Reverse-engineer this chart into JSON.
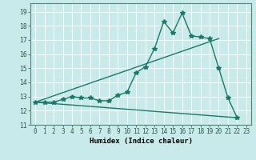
{
  "title": "",
  "xlabel": "Humidex (Indice chaleur)",
  "ylabel": "",
  "background_color": "#c8eaea",
  "grid_color": "#ffffff",
  "line_color": "#1a7a6a",
  "xlim": [
    -0.5,
    23.5
  ],
  "ylim": [
    11,
    19.6
  ],
  "yticks": [
    11,
    12,
    13,
    14,
    15,
    16,
    17,
    18,
    19
  ],
  "xticks": [
    0,
    1,
    2,
    3,
    4,
    5,
    6,
    7,
    8,
    9,
    10,
    11,
    12,
    13,
    14,
    15,
    16,
    17,
    18,
    19,
    20,
    21,
    22,
    23
  ],
  "xtick_labels": [
    "0",
    "1",
    "2",
    "3",
    "4",
    "5",
    "6",
    "7",
    "8",
    "9",
    "10",
    "11",
    "12",
    "13",
    "14",
    "15",
    "16",
    "17",
    "18",
    "19",
    "20",
    "21",
    "22",
    "23"
  ],
  "line1_x": [
    0,
    1,
    2,
    3,
    4,
    5,
    6,
    7,
    8,
    9,
    10,
    11,
    12,
    13,
    14,
    15,
    16,
    17,
    18,
    19,
    20,
    21,
    22
  ],
  "line1_y": [
    12.6,
    12.6,
    12.6,
    12.8,
    13.0,
    12.9,
    12.9,
    12.7,
    12.7,
    13.1,
    13.3,
    14.7,
    15.1,
    16.4,
    18.3,
    17.5,
    18.9,
    17.3,
    17.2,
    17.1,
    15.0,
    12.9,
    11.5
  ],
  "line2_x": [
    0,
    22
  ],
  "line2_y": [
    12.6,
    11.5
  ],
  "line3_x": [
    0,
    20
  ],
  "line3_y": [
    12.6,
    17.1
  ],
  "linewidth": 1.0,
  "marker_size": 4.0,
  "xlabel_fontsize": 6.5,
  "tick_fontsize": 5.5
}
